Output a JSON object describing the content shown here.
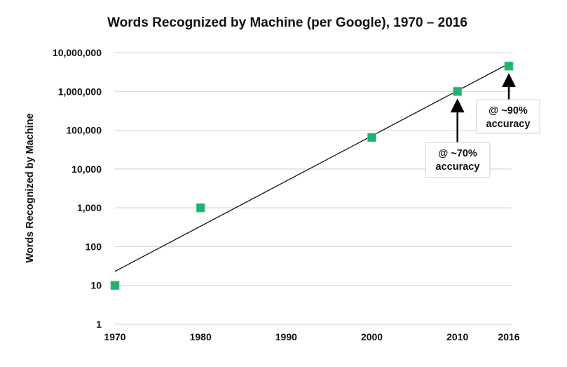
{
  "chart_data": {
    "type": "scatter",
    "title": "Words Recognized by Machine (per Google), 1970 – 2016",
    "xlabel": "",
    "ylabel": "Words Recognized by Machine",
    "yscale": "log",
    "xlim": [
      1970,
      2016
    ],
    "ylim": [
      1,
      10000000
    ],
    "grid": true,
    "x_ticks": [
      1970,
      1980,
      1990,
      2000,
      2010,
      2016
    ],
    "x_tick_labels": [
      "1970",
      "1980",
      "1990",
      "2000",
      "2010",
      "2016"
    ],
    "y_ticks": [
      1,
      10,
      100,
      1000,
      10000,
      100000,
      1000000,
      10000000
    ],
    "y_tick_labels": [
      "1",
      "10",
      "100",
      "1,000",
      "10,000",
      "100,000",
      "1,000,000",
      "10,000,000"
    ],
    "series": [
      {
        "name": "Words Recognized",
        "color": "#1db272",
        "marker": "square",
        "x": [
          1970,
          1980,
          2000,
          2010,
          2016
        ],
        "y": [
          10,
          1000,
          65000,
          1000000,
          4500000
        ]
      }
    ],
    "trendline": {
      "type": "exponential",
      "color": "#000000",
      "x": [
        1970,
        2016
      ],
      "y": [
        23,
        5200000
      ]
    },
    "annotations": [
      {
        "line1": "@ ~70%",
        "line2": "accuracy",
        "target_x": 2010,
        "target_y": 1000000
      },
      {
        "line1": "@ ~90%",
        "line2": "accuracy",
        "target_x": 2016,
        "target_y": 4500000
      }
    ]
  }
}
